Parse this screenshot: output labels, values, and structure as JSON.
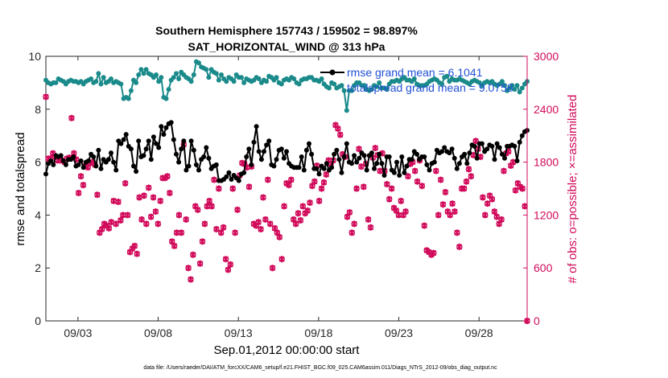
{
  "chart_data": {
    "type": "line",
    "title": "Southern Hemisphere 157743 / 159502 = 98.897%",
    "subtitle": "SAT_HORIZONTAL_WIND @ 313 hPa",
    "xlabel": "Sep.01,2012 00:00:00 start",
    "ylabel": "rmse and totalspread",
    "ylabel_right": "# of obs: o=possible; ×=assimilated",
    "xlim": [
      1,
      31
    ],
    "ylim": [
      0,
      10
    ],
    "ylim_right": [
      0,
      3000
    ],
    "x_ticks": [
      3,
      8,
      13,
      18,
      23,
      28
    ],
    "x_tick_labels": [
      "09/03",
      "09/08",
      "09/13",
      "09/18",
      "09/23",
      "09/28"
    ],
    "y_ticks": [
      0,
      2,
      4,
      6,
      8,
      10
    ],
    "y_ticks_right": [
      0,
      600,
      1200,
      1800,
      2400,
      3000
    ],
    "grid": false,
    "legend_position": "top-right",
    "legend": [
      {
        "label": "rmse grand mean = 6.1041",
        "color": "#000000"
      },
      {
        "label": "totalspread grand mean = 9.0758",
        "color": "#1a8a8a"
      }
    ],
    "series": [
      {
        "name": "rmse grand mean = 6.1041",
        "axis": "left",
        "color": "#000000",
        "values": [
          5.55,
          5.95,
          6.05,
          5.9,
          6.25,
          6.2,
          6.25,
          6.05,
          5.9,
          6.1,
          6.1,
          6.2,
          5.85,
          5.9,
          6.05,
          5.8,
          6.0,
          6.05,
          6.3,
          6.2,
          5.85,
          6.45,
          5.75,
          6.1,
          6.0,
          6.1,
          6.35,
          6.0,
          5.7,
          6.8,
          6.7,
          6.85,
          7.05,
          6.6,
          6.5,
          5.85,
          5.65,
          6.8,
          6.2,
          6.25,
          6.5,
          6.8,
          6.1,
          6.95,
          6.7,
          6.55,
          7.35,
          7.05,
          7.3,
          7.45,
          7.5,
          6.85,
          6.3,
          6.0,
          6.5,
          6.8,
          5.7,
          5.85,
          6.8,
          6.45,
          5.9,
          5.7,
          6.1,
          6.2,
          6.55,
          6.15,
          5.75,
          5.85,
          5.9,
          5.3,
          5.3,
          5.35,
          5.45,
          5.6,
          5.35,
          5.5,
          5.4,
          5.3,
          5.55,
          5.6,
          6.2,
          6.5,
          5.9,
          6.75,
          7.35,
          6.4,
          6.1,
          6.4,
          6.65,
          6.8,
          5.9,
          5.85,
          6.1,
          6.45,
          6.5,
          6.15,
          6.4,
          5.95,
          5.85,
          5.8,
          5.8,
          5.8,
          6.2,
          5.7,
          6.45,
          6.7,
          6.3,
          5.75,
          5.75,
          5.55,
          5.85,
          5.75,
          5.95,
          5.7,
          5.8,
          6.3,
          6.45,
          6.1,
          5.6,
          6.2,
          6.7,
          6.0,
          5.95,
          6.25,
          6.0,
          6.15,
          6.35,
          6.25,
          5.7,
          6.25,
          6.35,
          5.75,
          5.95,
          6.3,
          5.95,
          5.5,
          6.2,
          6.2,
          5.7,
          5.6,
          6.0,
          5.5,
          6.2,
          5.6,
          5.85,
          6.1,
          6.1,
          6.4,
          6.3,
          6.1,
          6.2,
          6.2,
          5.9,
          5.7,
          5.95,
          6.0,
          6.45,
          6.35,
          6.4,
          6.55,
          6.4,
          6.35,
          6.5,
          6.15,
          5.75,
          5.95,
          6.2,
          6.3,
          5.95,
          6.35,
          6.65,
          6.6,
          6.15,
          6.7,
          6.7,
          6.4,
          6.5,
          6.65,
          6.6,
          6.1,
          6.7,
          6.55,
          6.3,
          6.15,
          6.6,
          6.6,
          6.65,
          6.6,
          6.05,
          6.75,
          7.0,
          7.15,
          7.2
        ]
      },
      {
        "name": "totalspread grand mean = 9.0758",
        "axis": "left",
        "color": "#1a8a8a",
        "values": [
          9.1,
          9.0,
          8.95,
          9.0,
          9.0,
          9.15,
          9.1,
          9.05,
          8.95,
          9.05,
          9.1,
          9.05,
          9.05,
          9.0,
          9.05,
          8.95,
          9.05,
          9.1,
          9.15,
          9.0,
          9.05,
          9.35,
          8.95,
          9.2,
          9.0,
          9.05,
          9.15,
          9.0,
          9.05,
          9.0,
          8.95,
          8.4,
          8.45,
          8.4,
          8.7,
          9.1,
          9.0,
          9.3,
          9.5,
          9.35,
          9.5,
          9.35,
          9.3,
          9.2,
          9.3,
          9.05,
          9.2,
          8.45,
          8.4,
          8.75,
          9.1,
          9.2,
          9.35,
          9.15,
          9.4,
          9.3,
          9.2,
          9.15,
          9.05,
          9.3,
          9.8,
          9.75,
          9.6,
          9.55,
          9.5,
          9.2,
          9.5,
          9.4,
          9.35,
          9.1,
          9.3,
          9.15,
          9.05,
          9.2,
          9.15,
          9.05,
          9.3,
          9.2,
          9.2,
          9.0,
          9.15,
          9.1,
          9.05,
          9.1,
          9.2,
          9.15,
          9.0,
          9.1,
          9.05,
          9.25,
          9.2,
          9.1,
          9.2,
          9.0,
          8.95,
          9.1,
          9.15,
          9.1,
          9.2,
          9.15,
          9.0,
          8.95,
          9.1,
          9.15,
          9.15,
          9.2,
          9.2,
          9.1,
          9.1,
          9.05,
          9.15,
          8.95,
          8.85,
          8.8,
          9.0,
          8.95,
          8.8,
          8.85,
          8.9,
          8.7,
          7.95,
          8.7,
          8.7,
          8.9,
          9.0,
          9.0,
          8.9,
          8.9,
          8.75,
          8.7,
          8.75,
          8.9,
          8.85,
          9.0,
          8.8,
          8.8,
          8.75,
          8.95,
          9.05,
          9.05,
          9.1,
          9.05,
          9.15,
          9.2,
          9.1,
          9.1,
          9.05,
          9.15,
          8.95,
          8.9,
          8.9,
          8.9,
          8.95,
          9.05,
          9.1,
          9.15,
          9.1,
          9.0,
          8.95,
          9.2,
          9.25,
          9.05,
          9.15,
          9.1,
          9.1,
          9.15,
          9.1,
          9.05,
          9.0,
          8.95,
          9.05,
          9.1,
          9.05,
          9.0,
          8.9,
          9.0,
          9.05,
          9.0,
          9.05,
          8.95,
          8.9,
          8.95,
          9.05,
          8.9,
          8.7,
          8.8,
          8.9,
          8.75,
          8.9,
          8.65,
          8.8,
          8.95,
          9.05
        ]
      },
      {
        "name": "possible",
        "axis": "right",
        "color": "#d10a5a",
        "values": [
          2540,
          1840,
          1840,
          1900,
          1860,
          1820,
          1820,
          1820,
          1800,
          1840,
          1850,
          2300,
          1900,
          1830,
          1450,
          1640,
          1540,
          1760,
          1740,
          1790,
          1800,
          1770,
          1430,
          1000,
          1040,
          1100,
          1080,
          1050,
          1120,
          1360,
          1100,
          1350,
          1140,
          1200,
          1560,
          1200,
          780,
          820,
          850,
          760,
          1400,
          1150,
          1420,
          1100,
          1510,
          1180,
          1400,
          1240,
          1100,
          1360,
          1620,
          1620,
          1640,
          1450,
          900,
          850,
          1000,
          1200,
          1000,
          2000,
          1150,
          600,
          470,
          750,
          1300,
          1260,
          650,
          900,
          1100,
          1300,
          1360,
          1300,
          1600,
          1040,
          1500,
          1000,
          1060,
          700,
          580,
          640,
          1500,
          1000,
          1260,
          1650,
          1790,
          1780,
          1740,
          1520,
          1750,
          1100,
          1080,
          1120,
          1040,
          1400,
          1150,
          1600,
          1100,
          600,
          1050,
          1000,
          950,
          700,
          1300,
          1560,
          1540,
          1600,
          1150,
          1100,
          1220,
          1140,
          1300,
          1220,
          1250,
          1340,
          1530,
          1580,
          1760,
          1360,
          1500,
          1570,
          1660,
          1820,
          1780,
          1820,
          2220,
          2180,
          2110,
          1890,
          1860,
          1180,
          1230,
          1000,
          1100,
          1500,
          1950,
          1750,
          1520,
          1780,
          1150,
          1060,
          1850,
          1960,
          1880,
          1700,
          1900,
          1700,
          1550,
          1380,
          1500,
          1280,
          1250,
          1200,
          1360,
          1200,
          1240,
          1640,
          1780,
          1800,
          1700,
          1580,
          1820,
          1530,
          1080,
          800,
          780,
          750,
          770,
          1700,
          1200,
          1600,
          1320,
          1460,
          1240,
          1200,
          1330,
          1240,
          1000,
          840,
          1500,
          1500,
          1580,
          1720,
          1640,
          1880,
          2040,
          1950,
          1860,
          1400,
          1200,
          1330,
          1420,
          1380,
          1240,
          1180,
          1100,
          1150,
          1700,
          1900,
          1920,
          1760,
          1800,
          1480,
          1560,
          1520,
          1500,
          1300,
          0
        ]
      },
      {
        "name": "assimilated",
        "axis": "right",
        "color": "#d10a5a",
        "values": [
          2540,
          1840,
          1840,
          1900,
          1860,
          1820,
          1820,
          1820,
          1800,
          1840,
          1850,
          2300,
          1900,
          1830,
          1450,
          1640,
          1540,
          1760,
          1740,
          1790,
          1800,
          1770,
          1430,
          1000,
          1040,
          1100,
          1080,
          1050,
          1120,
          1360,
          1100,
          1350,
          1140,
          1200,
          1560,
          1200,
          780,
          820,
          850,
          760,
          1400,
          1150,
          1420,
          1100,
          1510,
          1180,
          1400,
          1240,
          1100,
          1360,
          1620,
          1620,
          1640,
          1450,
          900,
          850,
          1000,
          1200,
          1000,
          2000,
          1150,
          600,
          470,
          750,
          1300,
          1260,
          650,
          900,
          1100,
          1300,
          1360,
          1300,
          1600,
          1040,
          1500,
          1000,
          1060,
          700,
          580,
          640,
          1500,
          1000,
          1260,
          1650,
          1790,
          1780,
          1740,
          1520,
          1750,
          1100,
          1080,
          1120,
          1040,
          1400,
          1150,
          1600,
          1100,
          600,
          1050,
          1000,
          950,
          700,
          1300,
          1560,
          1540,
          1600,
          1150,
          1100,
          1220,
          1140,
          1300,
          1220,
          1250,
          1340,
          1530,
          1580,
          1760,
          1360,
          1500,
          1570,
          1660,
          1820,
          1780,
          1820,
          2220,
          2180,
          2110,
          1890,
          1860,
          1180,
          1230,
          1000,
          1100,
          1500,
          1950,
          1750,
          1520,
          1780,
          1150,
          1060,
          1850,
          1960,
          1880,
          1700,
          1900,
          1700,
          1550,
          1380,
          1500,
          1280,
          1250,
          1200,
          1360,
          1200,
          1240,
          1640,
          1780,
          1800,
          1700,
          1580,
          1820,
          1530,
          1080,
          800,
          780,
          750,
          770,
          1700,
          1200,
          1600,
          1320,
          1460,
          1240,
          1200,
          1330,
          1240,
          1000,
          840,
          1500,
          1500,
          1580,
          1720,
          1640,
          1880,
          2040,
          1950,
          1860,
          1400,
          1200,
          1330,
          1420,
          1380,
          1240,
          1180,
          1100,
          1150,
          1700,
          1900,
          1920,
          1760,
          1800,
          1480,
          1560,
          1520,
          1500,
          1300,
          0
        ]
      }
    ]
  },
  "footer_text": "data file: /Users/raeder/DAI/ATM_forcXX/CAM6_setup/f.e21.FHIST_BGC.f09_025.CAM6assim.011/Diags_NTrS_2012-09/obs_diag_output.nc"
}
